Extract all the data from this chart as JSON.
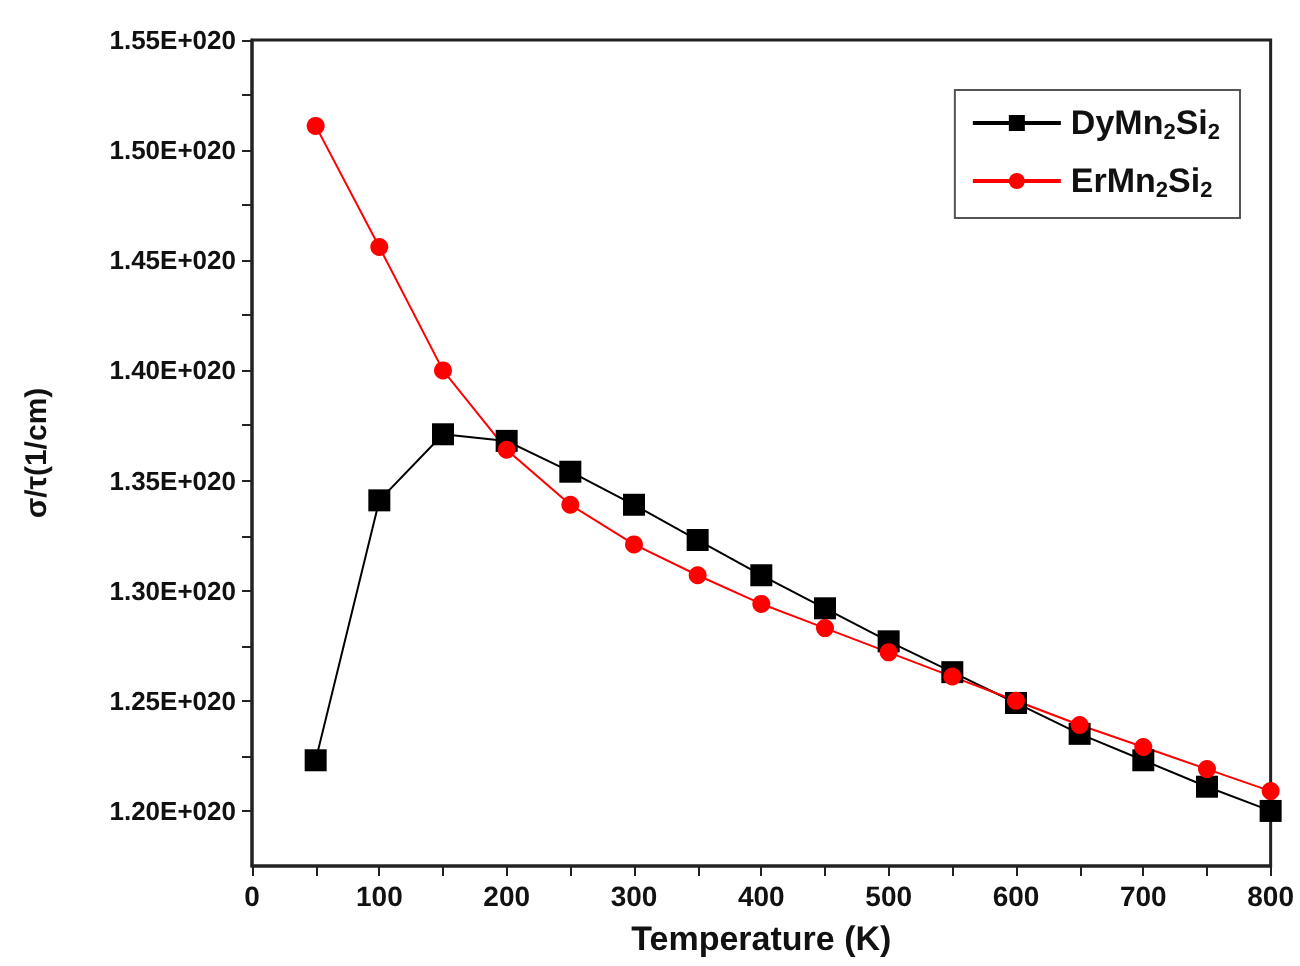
{
  "chart_data": {
    "type": "line",
    "xlabel": "Temperature (K)",
    "ylabel": "σ/τ(1/cm)",
    "x": [
      50,
      100,
      150,
      200,
      250,
      300,
      350,
      400,
      450,
      500,
      550,
      600,
      650,
      700,
      750,
      800
    ],
    "xlim": [
      0,
      800
    ],
    "xticks": [
      0,
      {
        "value": 50,
        "label": null
      },
      100,
      {
        "value": 150,
        "label": null
      },
      200,
      {
        "value": 250,
        "label": null
      },
      300,
      {
        "value": 350,
        "label": null
      },
      400,
      {
        "value": 450,
        "label": null
      },
      500,
      {
        "value": 550,
        "label": null
      },
      600,
      {
        "value": 650,
        "label": null
      },
      700,
      {
        "value": 750,
        "label": null
      },
      800
    ],
    "ylim": [
      1.175e+20,
      1.55e+20
    ],
    "yticks": [
      {
        "value": 1.2e+20,
        "label": "1.20E+020"
      },
      {
        "value": 1.225e+20,
        "label": null
      },
      {
        "value": 1.25e+20,
        "label": "1.25E+020"
      },
      {
        "value": 1.275e+20,
        "label": null
      },
      {
        "value": 1.3e+20,
        "label": "1.30E+020"
      },
      {
        "value": 1.325e+20,
        "label": null
      },
      {
        "value": 1.35e+20,
        "label": "1.35E+020"
      },
      {
        "value": 1.375e+20,
        "label": null
      },
      {
        "value": 1.4e+20,
        "label": "1.40E+020"
      },
      {
        "value": 1.425e+20,
        "label": null
      },
      {
        "value": 1.45e+20,
        "label": "1.45E+020"
      },
      {
        "value": 1.475e+20,
        "label": null
      },
      {
        "value": 1.5e+20,
        "label": "1.50E+020"
      },
      {
        "value": 1.525e+20,
        "label": null
      },
      {
        "value": 1.55e+20,
        "label": "1.55E+020"
      }
    ],
    "grid": false,
    "legend": "top right",
    "line_style": "solid",
    "series": [
      {
        "name": "DyMn$_{2}$Si$_{2}$",
        "color": "#000000",
        "marker": "square",
        "values": [
          1.223e+20,
          1.341e+20,
          1.371e+20,
          1.368e+20,
          1.354e+20,
          1.339e+20,
          1.323e+20,
          1.307e+20,
          1.292e+20,
          1.277e+20,
          1.263e+20,
          1.249e+20,
          1.235e+20,
          1.223e+20,
          1.211e+20,
          1.2e+20
        ]
      },
      {
        "name": "ErMn$_{2}$Si$_{2}$",
        "color": "#ff0000",
        "marker": "circle",
        "values": [
          1.511e+20,
          1.456e+20,
          1.4e+20,
          1.364e+20,
          1.339e+20,
          1.321e+20,
          1.307e+20,
          1.294e+20,
          1.283e+20,
          1.272e+20,
          1.261e+20,
          1.25e+20,
          1.239e+20,
          1.229e+20,
          1.219e+20,
          1.209e+20
        ]
      }
    ]
  }
}
